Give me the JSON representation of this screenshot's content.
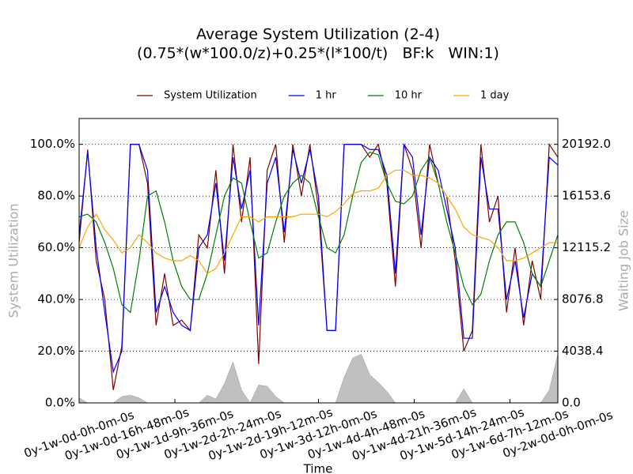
{
  "chart_data": {
    "type": "line",
    "title": "Average System Utilization (2-4)",
    "subtitle": "(0.75*(w*100.0/z)+0.25*(l*100/t)   BF:k   WIN:1)",
    "x_label": "Time",
    "y_label": "System Utilization",
    "y2_label": "Waiting Job Size",
    "grid": true,
    "legend": "top",
    "x": [
      168,
      171,
      174,
      177,
      180,
      183,
      186,
      189,
      192,
      195,
      198,
      201,
      204,
      207,
      210,
      213,
      216,
      219,
      222,
      225,
      228,
      231,
      234,
      237,
      240,
      243,
      246,
      249,
      252,
      255,
      258,
      261,
      264,
      267,
      270,
      273,
      276,
      279,
      282,
      285,
      288,
      291,
      294,
      297,
      300,
      303,
      306,
      309,
      312,
      315,
      318,
      321,
      324,
      327,
      330,
      333,
      336
    ],
    "xlim": [
      168,
      336
    ],
    "xticks": [
      {
        "value": 168,
        "label": "0y-1w-0d-0h-0m-0s"
      },
      {
        "value": 184.8,
        "label": "0y-1w-0d-16h-48m-0s"
      },
      {
        "value": 201.6,
        "label": "0y-1w-1d-9h-36m-0s"
      },
      {
        "value": 218.4,
        "label": "0y-1w-2d-2h-24m-0s"
      },
      {
        "value": 235.2,
        "label": "0y-1w-2d-19h-12m-0s"
      },
      {
        "value": 252,
        "label": "0y-1w-3d-12h-0m-0s"
      },
      {
        "value": 268.8,
        "label": "0y-1w-4d-4h-48m-0s"
      },
      {
        "value": 285.6,
        "label": "0y-1w-4d-21h-36m-0s"
      },
      {
        "value": 302.4,
        "label": "0y-1w-5d-14h-24m-0s"
      },
      {
        "value": 319.2,
        "label": "0y-1w-6d-7h-12m-0s"
      },
      {
        "value": 336,
        "label": "0y-2w-0d-0h-0m-0s"
      }
    ],
    "ylim": [
      0,
      110
    ],
    "yticks": [
      {
        "value": 0,
        "label": "0.0%"
      },
      {
        "value": 20,
        "label": "20.0%"
      },
      {
        "value": 40,
        "label": "40.0%"
      },
      {
        "value": 60,
        "label": "60.0%"
      },
      {
        "value": 80,
        "label": "80.0%"
      },
      {
        "value": 100,
        "label": "100.0%"
      }
    ],
    "y2lim": [
      0,
      22211.2
    ],
    "y2ticks": [
      {
        "value": 0,
        "label": "0.0"
      },
      {
        "value": 4038.4,
        "label": "4038.4"
      },
      {
        "value": 8076.8,
        "label": "8076.8"
      },
      {
        "value": 12115.2,
        "label": "12115.2"
      },
      {
        "value": 16153.6,
        "label": "16153.6"
      },
      {
        "value": 20192,
        "label": "20192.0"
      }
    ],
    "series": [
      {
        "axis": "y2",
        "kind": "area",
        "color": "#c0c0c0",
        "values": [
          400,
          0,
          0,
          0,
          0,
          500,
          600,
          400,
          0,
          0,
          0,
          0,
          0,
          0,
          0,
          600,
          300,
          1500,
          3200,
          1000,
          0,
          1400,
          1300,
          500,
          0,
          0,
          0,
          0,
          0,
          0,
          0,
          2000,
          3500,
          3800,
          2200,
          1600,
          900,
          0,
          0,
          0,
          0,
          0,
          0,
          0,
          0,
          1100,
          0,
          0,
          0,
          0,
          0,
          0,
          0,
          0,
          0,
          1000,
          3800
        ]
      },
      {
        "name": "System Utilization",
        "color": "#800000",
        "values": [
          62,
          98,
          55,
          40,
          5,
          22,
          100,
          100,
          85,
          30,
          50,
          30,
          32,
          28,
          65,
          60,
          90,
          50,
          100,
          70,
          95,
          15,
          90,
          100,
          62,
          100,
          80,
          100,
          75,
          28,
          28,
          100,
          100,
          100,
          95,
          100,
          85,
          45,
          100,
          90,
          60,
          100,
          85,
          80,
          55,
          20,
          28,
          100,
          70,
          80,
          35,
          60,
          30,
          55,
          40,
          100,
          95
        ]
      },
      {
        "name": "1 hr",
        "color": "#0000ff",
        "values": [
          65,
          97,
          60,
          35,
          12,
          20,
          100,
          100,
          90,
          35,
          45,
          35,
          30,
          28,
          60,
          65,
          85,
          55,
          95,
          75,
          90,
          30,
          85,
          95,
          66,
          98,
          85,
          98,
          80,
          28,
          28,
          100,
          100,
          100,
          98,
          98,
          88,
          50,
          100,
          95,
          65,
          95,
          90,
          75,
          60,
          25,
          25,
          95,
          75,
          75,
          40,
          55,
          33,
          50,
          45,
          95,
          92
        ]
      },
      {
        "name": "10 hr",
        "color": "#008000",
        "values": [
          72,
          73,
          70,
          62,
          52,
          38,
          35,
          55,
          80,
          82,
          70,
          55,
          45,
          40,
          40,
          50,
          65,
          80,
          87,
          85,
          70,
          56,
          58,
          70,
          80,
          85,
          88,
          85,
          72,
          60,
          58,
          65,
          80,
          93,
          97,
          96,
          85,
          78,
          77,
          80,
          90,
          95,
          85,
          70,
          58,
          45,
          38,
          42,
          55,
          65,
          70,
          70,
          62,
          50,
          45,
          55,
          65
        ]
      },
      {
        "name": "1 day",
        "color": "#ffa500",
        "values": [
          60,
          68,
          73,
          67,
          63,
          58,
          60,
          65,
          62,
          58,
          56,
          55,
          55,
          57,
          55,
          50,
          52,
          58,
          65,
          72,
          72,
          70,
          72,
          72,
          72,
          72,
          73,
          73,
          73,
          72,
          74,
          77,
          81,
          82,
          82,
          83,
          88,
          90,
          90,
          88,
          88,
          87,
          85,
          80,
          75,
          68,
          65,
          64,
          63,
          60,
          55,
          55,
          56,
          58,
          60,
          62,
          62
        ]
      }
    ]
  }
}
